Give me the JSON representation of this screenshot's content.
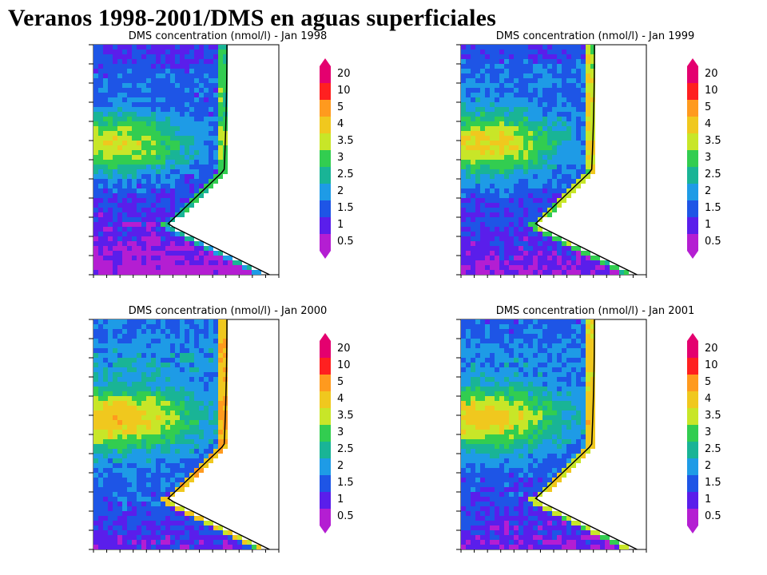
{
  "title": "Veranos 1998-2001/DMS en aguas superficiales",
  "colorbar": {
    "labels": [
      "20",
      "10",
      "5",
      "4",
      "3.5",
      "3",
      "2.5",
      "2",
      "1.5",
      "1",
      "0.5"
    ],
    "colors": [
      "#e4006f",
      "#ff2020",
      "#ff9a1e",
      "#f0c81e",
      "#c8e628",
      "#32cd50",
      "#19b496",
      "#1e9be6",
      "#1e55e6",
      "#5a1eeb",
      "#b41ed2"
    ]
  },
  "panels": [
    {
      "title": "DMS concentration (nmol/l) - Jan 1998",
      "level": 0.0
    },
    {
      "title": "DMS concentration (nmol/l) - Jan 1999",
      "level": 0.15
    },
    {
      "title": "DMS concentration (nmol/l) - Jan 2000",
      "level": 0.35
    },
    {
      "title": "DMS concentration (nmol/l) - Jan 2001",
      "level": 0.25
    }
  ],
  "colors": {
    "land": "#ffffff",
    "coast": "#000000"
  }
}
